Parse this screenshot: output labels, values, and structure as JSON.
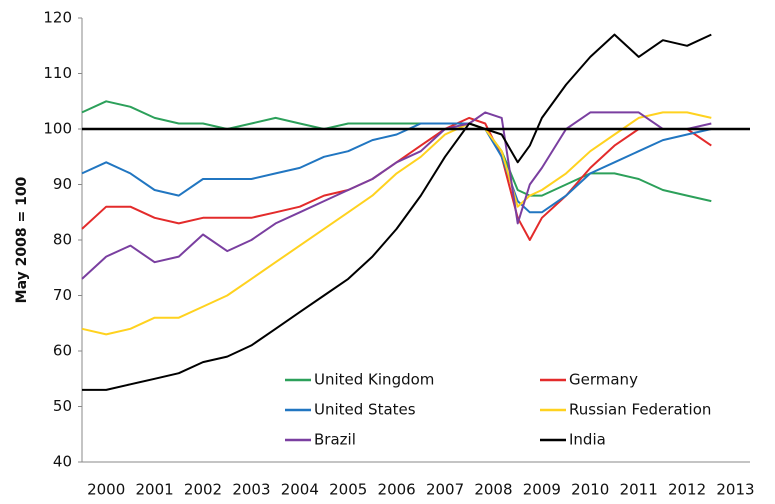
{
  "chart_data": {
    "type": "line",
    "y_label": "May 2008 = 100",
    "x": [
      2000,
      2000.5,
      2001,
      2001.5,
      2002,
      2002.5,
      2003,
      2003.5,
      2004,
      2004.5,
      2005,
      2005.5,
      2006,
      2006.5,
      2007,
      2007.5,
      2008,
      2008.33,
      2008.67,
      2009,
      2009.25,
      2009.5,
      2010,
      2010.5,
      2011,
      2011.5,
      2012,
      2012.5,
      2013
    ],
    "series": [
      {
        "name": "United Kingdom",
        "color": "#2ca05a",
        "values": [
          103,
          105,
          104,
          102,
          101,
          101,
          100,
          101,
          102,
          101,
          100,
          101,
          101,
          101,
          101,
          101,
          101,
          100,
          96,
          89,
          88,
          88,
          90,
          92,
          92,
          91,
          89,
          88,
          87
        ]
      },
      {
        "name": "Germany",
        "color": "#e32b2b",
        "values": [
          82,
          86,
          86,
          84,
          83,
          84,
          84,
          84,
          85,
          86,
          88,
          89,
          91,
          94,
          97,
          100,
          102,
          101,
          95,
          84,
          80,
          84,
          88,
          93,
          97,
          100,
          100,
          100,
          97
        ]
      },
      {
        "name": "United States",
        "color": "#2176c1",
        "values": [
          92,
          94,
          92,
          89,
          88,
          91,
          91,
          91,
          92,
          93,
          95,
          96,
          98,
          99,
          101,
          101,
          101,
          100,
          95,
          87,
          85,
          85,
          88,
          92,
          94,
          96,
          98,
          99,
          100
        ]
      },
      {
        "name": "Russian Federation",
        "color": "#ffd21f",
        "values": [
          64,
          63,
          64,
          66,
          66,
          68,
          70,
          73,
          76,
          79,
          82,
          85,
          88,
          92,
          95,
          99,
          101,
          100,
          96,
          86,
          88,
          89,
          92,
          96,
          99,
          102,
          103,
          103,
          102
        ]
      },
      {
        "name": "Brazil",
        "color": "#7a3fa0",
        "values": [
          73,
          77,
          79,
          76,
          77,
          81,
          78,
          80,
          83,
          85,
          87,
          89,
          91,
          94,
          96,
          100,
          101,
          103,
          102,
          83,
          90,
          93,
          100,
          103,
          103,
          103,
          100,
          100,
          101
        ]
      },
      {
        "name": "India",
        "color": "#000000",
        "values": [
          53,
          53,
          54,
          55,
          56,
          58,
          59,
          61,
          64,
          67,
          70,
          73,
          77,
          82,
          88,
          95,
          101,
          100,
          99,
          94,
          97,
          102,
          108,
          113,
          117,
          113,
          116,
          115,
          117
        ]
      }
    ],
    "reference_line": 100,
    "xlim": [
      2000,
      2013.8
    ],
    "xticks": [
      {
        "value": 2000.5,
        "label": "2000"
      },
      {
        "value": 2001.5,
        "label": "2001"
      },
      {
        "value": 2002.5,
        "label": "2002"
      },
      {
        "value": 2003.5,
        "label": "2003"
      },
      {
        "value": 2004.5,
        "label": "2004"
      },
      {
        "value": 2005.5,
        "label": "2005"
      },
      {
        "value": 2006.5,
        "label": "2006"
      },
      {
        "value": 2007.5,
        "label": "2007"
      },
      {
        "value": 2008.5,
        "label": "2008"
      },
      {
        "value": 2009.5,
        "label": "2009"
      },
      {
        "value": 2010.5,
        "label": "2010"
      },
      {
        "value": 2011.5,
        "label": "2011"
      },
      {
        "value": 2012.5,
        "label": "2012"
      },
      {
        "value": 2013.5,
        "label": "2013"
      }
    ],
    "ylim": [
      40,
      120
    ],
    "yticks": [
      40,
      50,
      60,
      70,
      80,
      90,
      100,
      110,
      120
    ],
    "legend": "bottom"
  }
}
